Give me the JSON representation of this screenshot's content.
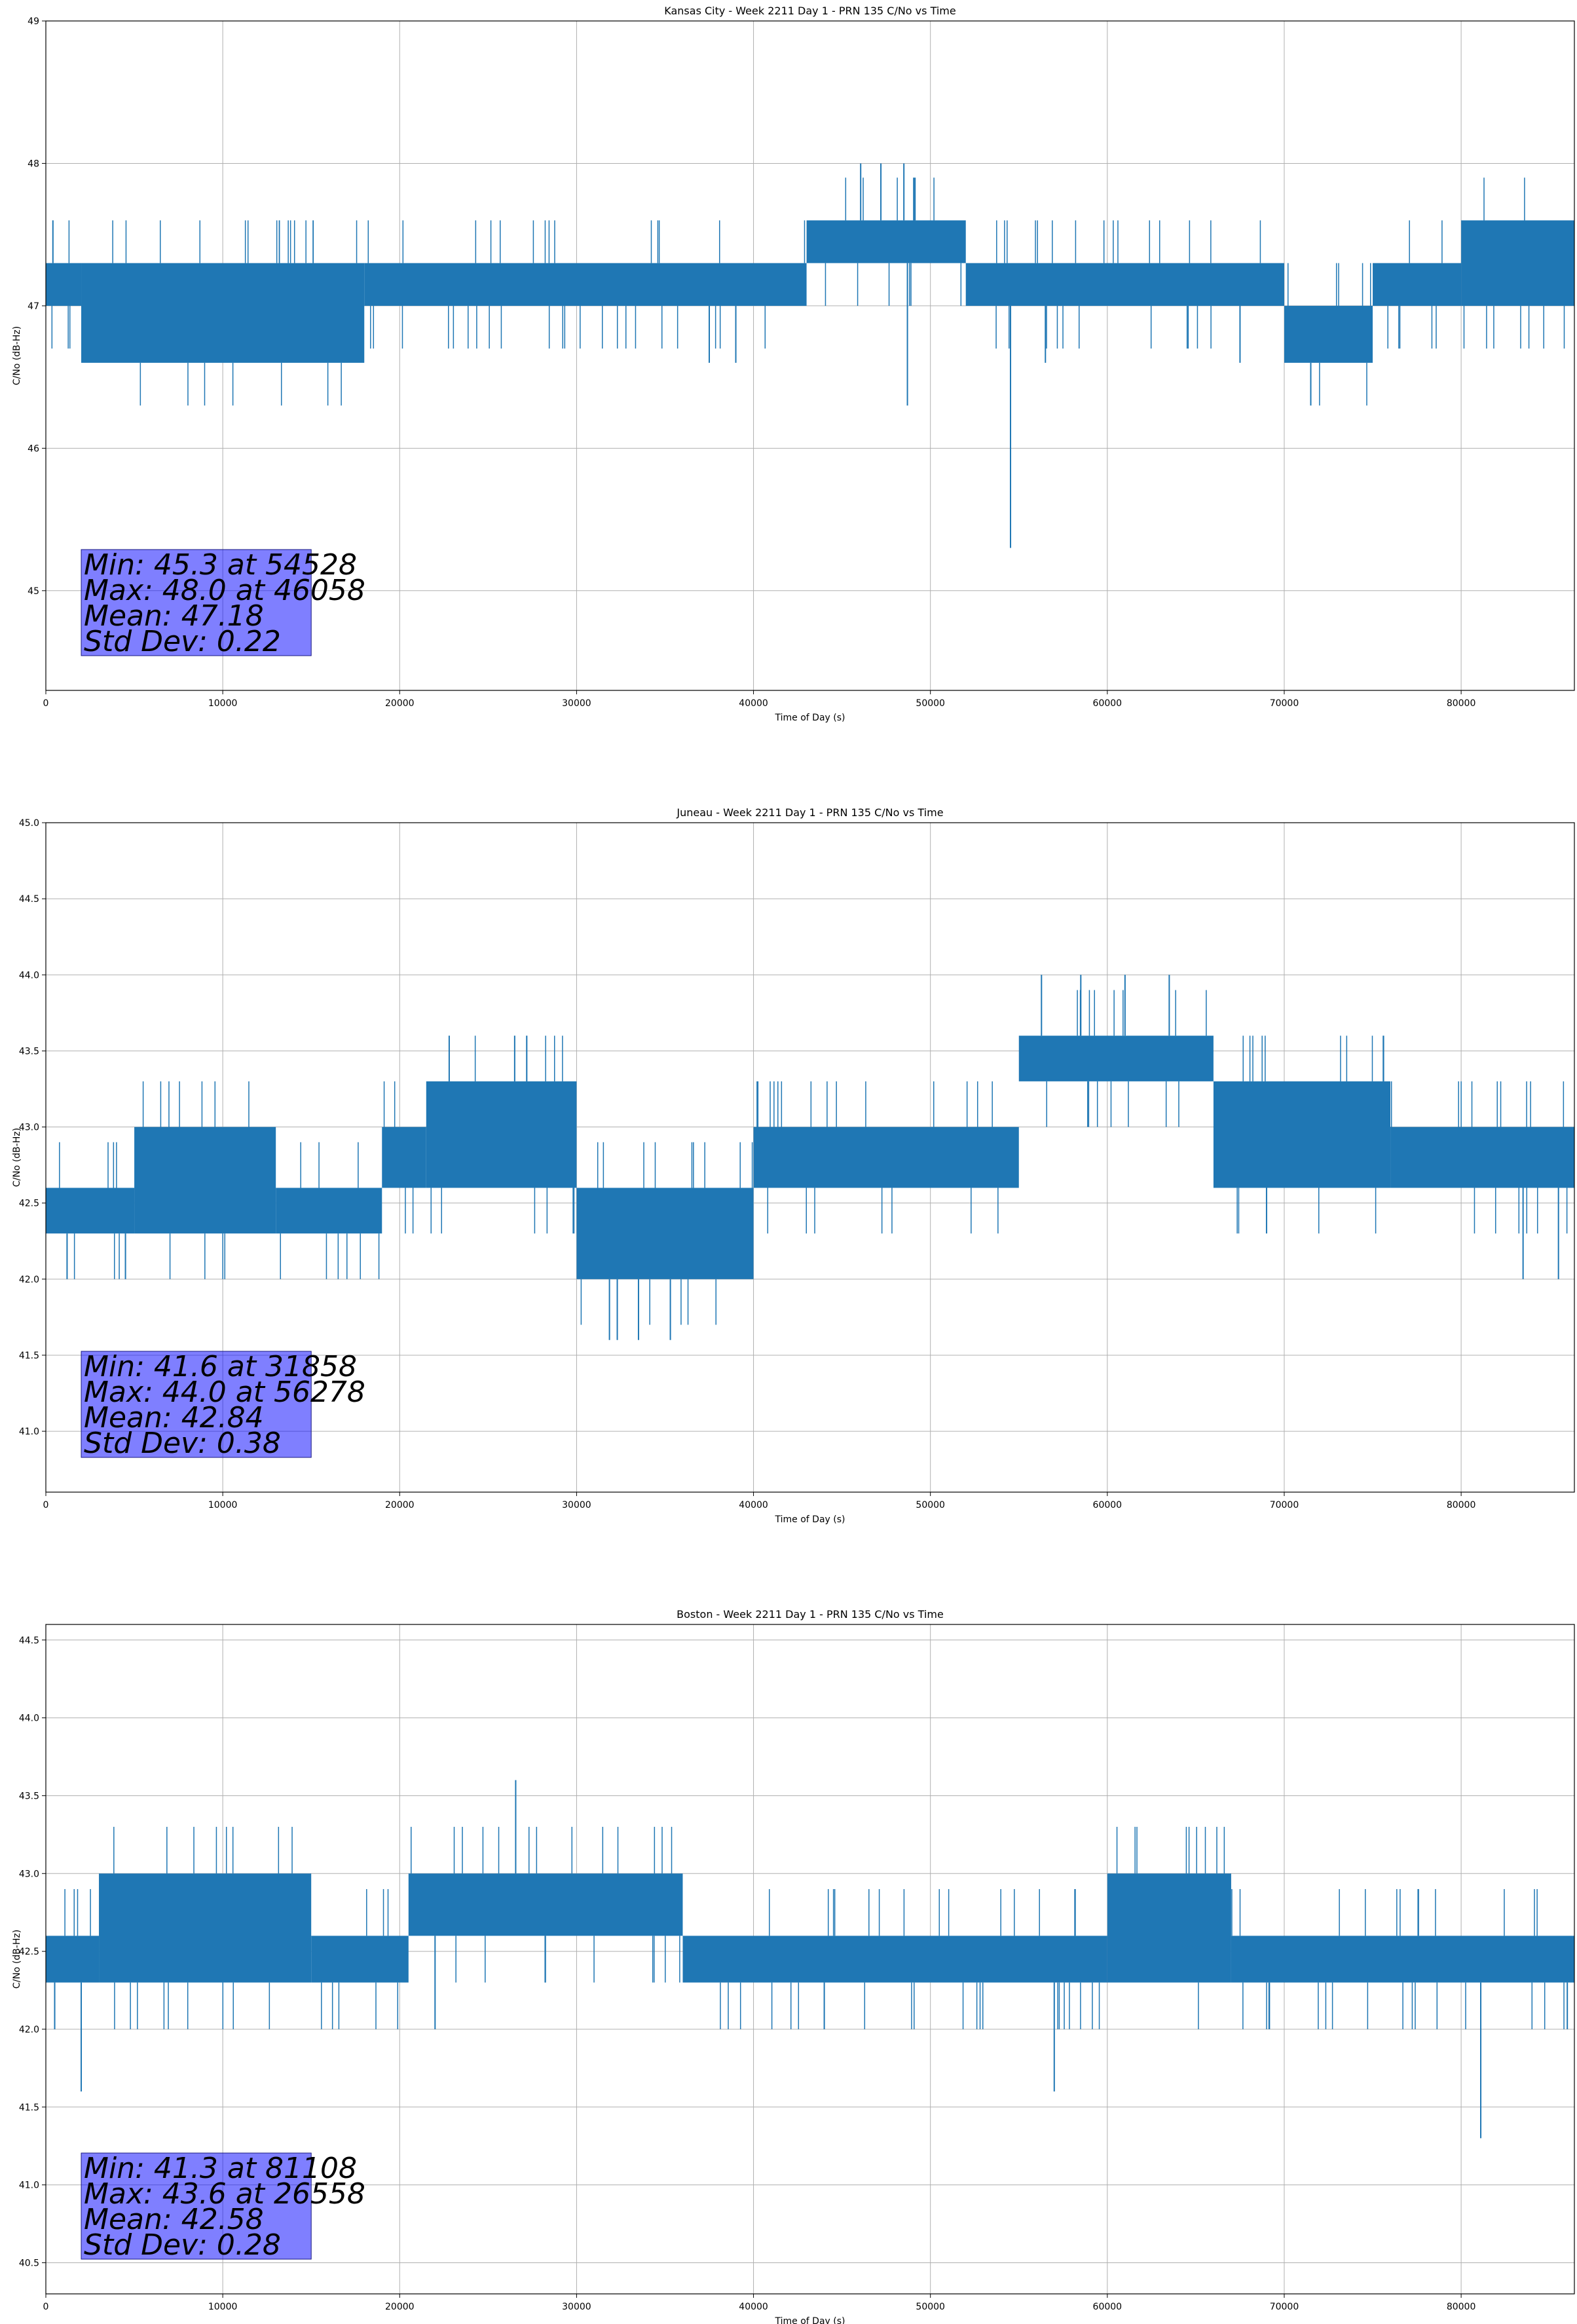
{
  "chart_data": [
    {
      "type": "line",
      "title": "Kansas City - Week 2211 Day 1 - PRN 135 C/No vs Time",
      "xlabel": "Time of Day (s)",
      "ylabel": "C/No (dB-Hz)",
      "xlim": [
        0,
        86400
      ],
      "ylim": [
        44.3,
        49
      ],
      "xticks": [
        0,
        10000,
        20000,
        30000,
        40000,
        50000,
        60000,
        70000,
        80000
      ],
      "yticks": [
        45,
        46,
        47,
        48,
        49
      ],
      "ytick_labels": [
        "45",
        "46",
        "47",
        "48",
        "49"
      ],
      "grid": true,
      "color": "#1f77b4",
      "band_segments": [
        {
          "x": [
            0,
            2000
          ],
          "low": 47.0,
          "high": 47.3
        },
        {
          "x": [
            2000,
            18000
          ],
          "low": 46.6,
          "high": 47.3
        },
        {
          "x": [
            18000,
            43000
          ],
          "low": 47.0,
          "high": 47.3
        },
        {
          "x": [
            43000,
            52000
          ],
          "low": 47.3,
          "high": 47.6
        },
        {
          "x": [
            52000,
            70000
          ],
          "low": 47.0,
          "high": 47.3
        },
        {
          "x": [
            70000,
            75000
          ],
          "low": 46.6,
          "high": 47.0
        },
        {
          "x": [
            75000,
            80000
          ],
          "low": 47.0,
          "high": 47.3
        },
        {
          "x": [
            80000,
            86400
          ],
          "low": 47.0,
          "high": 47.6
        }
      ],
      "spikes": [
        {
          "x": 54528,
          "y": 45.3
        },
        {
          "x": 46058,
          "y": 48.0
        },
        {
          "x": 48500,
          "y": 48.0
        },
        {
          "x": 47200,
          "y": 48.0
        },
        {
          "x": 48700,
          "y": 46.3
        },
        {
          "x": 71500,
          "y": 46.3
        },
        {
          "x": 37500,
          "y": 46.6
        },
        {
          "x": 39000,
          "y": 46.6
        },
        {
          "x": 56500,
          "y": 46.6
        },
        {
          "x": 67500,
          "y": 46.6
        },
        {
          "x": 400,
          "y": 47.6
        }
      ],
      "stats": {
        "min": "Min: 45.3 at 54528",
        "max": "Max: 48.0 at 46058",
        "mean": "Mean: 47.18",
        "std": "Std Dev: 0.22"
      }
    },
    {
      "type": "line",
      "title": "Juneau - Week 2211 Day 1 - PRN 135 C/No vs Time",
      "xlabel": "Time of Day (s)",
      "ylabel": "C/No (dB-Hz)",
      "xlim": [
        0,
        86400
      ],
      "ylim": [
        40.6,
        45.0
      ],
      "xticks": [
        0,
        10000,
        20000,
        30000,
        40000,
        50000,
        60000,
        70000,
        80000
      ],
      "yticks": [
        41.0,
        41.5,
        42.0,
        42.5,
        43.0,
        43.5,
        44.0,
        44.5,
        45.0
      ],
      "ytick_labels": [
        "41.0",
        "41.5",
        "42.0",
        "42.5",
        "43.0",
        "43.5",
        "44.0",
        "44.5",
        "45.0"
      ],
      "grid": true,
      "color": "#1f77b4",
      "band_segments": [
        {
          "x": [
            0,
            5000
          ],
          "low": 42.3,
          "high": 42.6
        },
        {
          "x": [
            5000,
            13000
          ],
          "low": 42.3,
          "high": 43.0
        },
        {
          "x": [
            13000,
            19000
          ],
          "low": 42.3,
          "high": 42.6
        },
        {
          "x": [
            19000,
            21500
          ],
          "low": 42.6,
          "high": 43.0
        },
        {
          "x": [
            21500,
            30000
          ],
          "low": 42.6,
          "high": 43.3
        },
        {
          "x": [
            30000,
            40000
          ],
          "low": 42.0,
          "high": 42.6
        },
        {
          "x": [
            40000,
            55000
          ],
          "low": 42.6,
          "high": 43.0
        },
        {
          "x": [
            55000,
            66000
          ],
          "low": 43.3,
          "high": 43.6
        },
        {
          "x": [
            66000,
            76000
          ],
          "low": 42.6,
          "high": 43.3
        },
        {
          "x": [
            76000,
            86400
          ],
          "low": 42.6,
          "high": 43.0
        }
      ],
      "spikes": [
        {
          "x": 31858,
          "y": 41.6
        },
        {
          "x": 32300,
          "y": 41.6
        },
        {
          "x": 33500,
          "y": 41.6
        },
        {
          "x": 35300,
          "y": 41.6
        },
        {
          "x": 56278,
          "y": 44.0
        },
        {
          "x": 58500,
          "y": 44.0
        },
        {
          "x": 61000,
          "y": 44.0
        },
        {
          "x": 63500,
          "y": 44.0
        },
        {
          "x": 22800,
          "y": 43.6
        },
        {
          "x": 26500,
          "y": 43.6
        },
        {
          "x": 1200,
          "y": 42.0
        },
        {
          "x": 4500,
          "y": 42.0
        },
        {
          "x": 83500,
          "y": 42.0
        },
        {
          "x": 85500,
          "y": 42.0
        },
        {
          "x": 69000,
          "y": 42.3
        }
      ],
      "stats": {
        "min": "Min: 41.6 at 31858",
        "max": "Max: 44.0 at 56278",
        "mean": "Mean: 42.84",
        "std": "Std Dev: 0.38"
      }
    },
    {
      "type": "line",
      "title": "Boston - Week 2211 Day 1 - PRN 135 C/No vs Time",
      "xlabel": "Time of Day (s)",
      "ylabel": "C/No (dB-Hz)",
      "xlim": [
        0,
        86400
      ],
      "ylim": [
        40.3,
        44.6
      ],
      "xticks": [
        0,
        10000,
        20000,
        30000,
        40000,
        50000,
        60000,
        70000,
        80000
      ],
      "yticks": [
        40.5,
        41.0,
        41.5,
        42.0,
        42.5,
        43.0,
        43.5,
        44.0,
        44.5
      ],
      "ytick_labels": [
        "40.5",
        "41.0",
        "41.5",
        "42.0",
        "42.5",
        "43.0",
        "43.5",
        "44.0",
        "44.5"
      ],
      "grid": true,
      "color": "#1f77b4",
      "band_segments": [
        {
          "x": [
            0,
            3000
          ],
          "low": 42.3,
          "high": 42.6
        },
        {
          "x": [
            3000,
            15000
          ],
          "low": 42.3,
          "high": 43.0
        },
        {
          "x": [
            15000,
            20500
          ],
          "low": 42.3,
          "high": 42.6
        },
        {
          "x": [
            20500,
            36000
          ],
          "low": 42.6,
          "high": 43.0
        },
        {
          "x": [
            36000,
            60000
          ],
          "low": 42.3,
          "high": 42.6
        },
        {
          "x": [
            60000,
            67000
          ],
          "low": 42.3,
          "high": 43.0
        },
        {
          "x": [
            67000,
            86400
          ],
          "low": 42.3,
          "high": 42.6
        }
      ],
      "spikes": [
        {
          "x": 26558,
          "y": 43.6
        },
        {
          "x": 81108,
          "y": 41.3
        },
        {
          "x": 2000,
          "y": 41.6
        },
        {
          "x": 57000,
          "y": 41.6
        },
        {
          "x": 22000,
          "y": 42.0
        },
        {
          "x": 44000,
          "y": 42.0
        },
        {
          "x": 500,
          "y": 42.0
        },
        {
          "x": 86000,
          "y": 42.0
        }
      ],
      "stats": {
        "min": "Min: 41.3 at 81108",
        "max": "Max: 43.6 at 26558",
        "mean": "Mean: 42.58",
        "std": "Std Dev: 0.28"
      }
    }
  ]
}
